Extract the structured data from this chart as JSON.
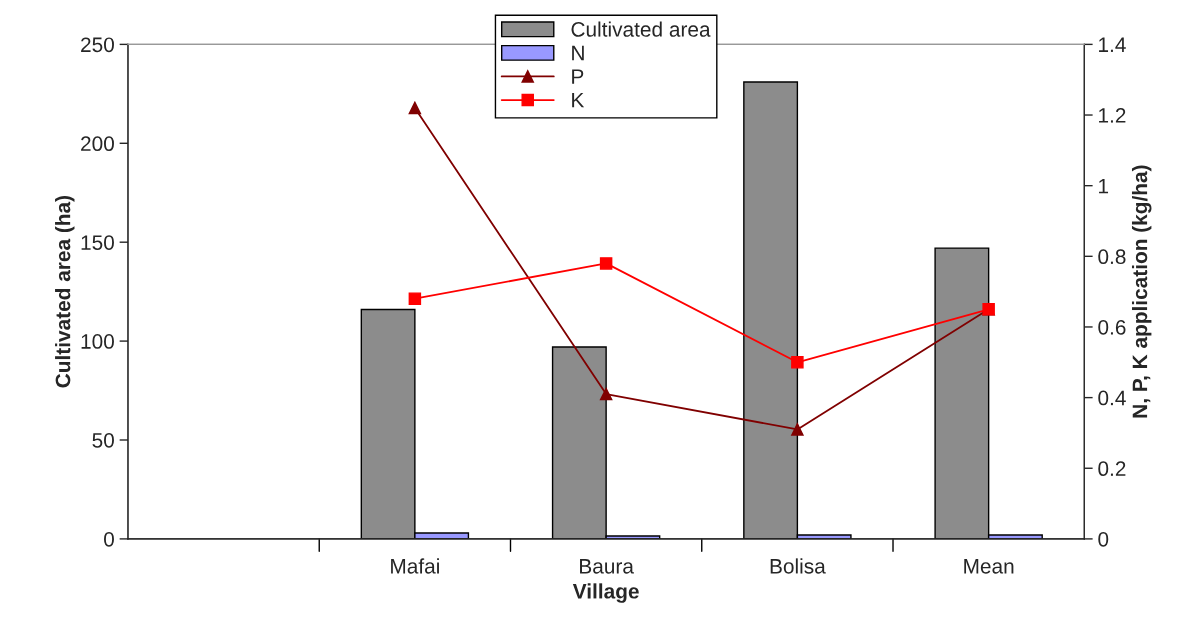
{
  "chart_data": {
    "type": "bar",
    "xlabel": "Village",
    "ylabel": "Cultivated area (ha)",
    "y2label": "N, P, K application (kg/ha)",
    "categories": [
      null,
      "Mafai",
      "Baura",
      "Bolisa",
      "Mean"
    ],
    "series": [
      {
        "name": "Cultivated area",
        "color": "#8c8c8c",
        "values": [
          null,
          116,
          97,
          231,
          147
        ]
      },
      {
        "name": "N",
        "color": "#9999ff",
        "values": [
          null,
          3,
          1.5,
          2,
          2
        ]
      },
      {
        "name": "P",
        "type": "line",
        "axis": "y2",
        "color": "#800000",
        "marker": "triangle",
        "line_style": "solid",
        "values": [
          null,
          1.22,
          0.41,
          0.31,
          0.65
        ]
      },
      {
        "name": "K",
        "type": "line",
        "axis": "y2",
        "color": "#ff0000",
        "marker": "square",
        "line_style": "solid",
        "values": [
          null,
          0.68,
          0.78,
          0.5,
          0.65
        ]
      }
    ],
    "ylim": [
      0,
      250
    ],
    "yticks": [
      0,
      50,
      100,
      150,
      200,
      250
    ],
    "y2lim": [
      0,
      1.4
    ],
    "y2ticks": [
      0,
      0.2,
      0.4,
      0.6,
      0.8,
      1,
      1.2,
      1.4
    ],
    "grid": false,
    "legend": "top"
  }
}
